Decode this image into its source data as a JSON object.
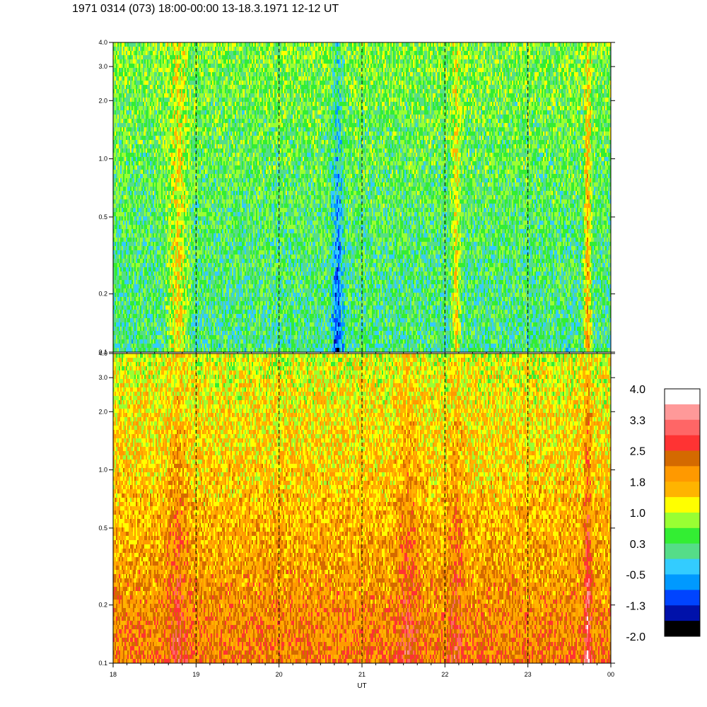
{
  "title": "1971 0314 (073) 18:00-00:00 13-18.3.1971  12-12 UT",
  "chart_data": [
    {
      "type": "heatmap",
      "panel": "upper",
      "x_range": [
        18,
        24
      ],
      "x_tick_labels": [
        "18",
        "19",
        "20",
        "21",
        "22",
        "23",
        "00"
      ],
      "y_scale": "log",
      "ylim": [
        0.1,
        4.0
      ],
      "y_tick_values": [
        0.1,
        0.2,
        0.5,
        1.0,
        2.0,
        3.0,
        4.0
      ],
      "y_tick_labels": [
        "0.1",
        "0.2",
        "0.5",
        "1.0",
        "2.0",
        "3.0",
        "4.0"
      ],
      "dominant_levels": [
        -0.5,
        0.3,
        1.0
      ],
      "features": [
        {
          "x_start": 18.6,
          "x_end": 18.95,
          "level_peak": 1.8
        },
        {
          "x_start": 20.6,
          "x_end": 20.8,
          "level_peak": -1.3
        },
        {
          "x_start": 22.05,
          "x_end": 22.2,
          "level_peak": 1.8
        },
        {
          "x_start": 23.65,
          "x_end": 23.78,
          "level_peak": 2.5
        }
      ]
    },
    {
      "type": "heatmap",
      "panel": "lower",
      "x_range": [
        18,
        24
      ],
      "x_tick_labels": [
        "18",
        "19",
        "20",
        "21",
        "22",
        "23",
        "00"
      ],
      "xlabel": "UT",
      "y_scale": "log",
      "ylim": [
        0.1,
        4.0
      ],
      "y_tick_values": [
        0.1,
        0.2,
        0.5,
        1.0,
        2.0,
        3.0,
        4.0
      ],
      "y_tick_labels": [
        "0.1",
        "0.2",
        "0.5",
        "1.0",
        "2.0",
        "3.0",
        "4.0"
      ],
      "dominant_levels": [
        1.0,
        1.8,
        2.5
      ],
      "features": [
        {
          "x_start": 18.6,
          "x_end": 18.95,
          "level_peak": 2.5
        },
        {
          "x_start": 19.6,
          "x_end": 19.9,
          "level_peak": 1.8
        },
        {
          "x_start": 21.35,
          "x_end": 21.75,
          "level_peak": 2.5
        },
        {
          "x_start": 22.0,
          "x_end": 22.25,
          "level_peak": 2.5
        },
        {
          "x_start": 23.65,
          "x_end": 23.78,
          "level_peak": 3.3
        }
      ]
    }
  ],
  "colorbar": {
    "labels": [
      "4.0",
      "3.3",
      "2.5",
      "1.8",
      "1.0",
      "0.3",
      "-0.5",
      "-1.3",
      "-2.0"
    ],
    "colors": [
      "#ffffff",
      "#ff9999",
      "#ff6666",
      "#ff3333",
      "#d46a00",
      "#ff9900",
      "#ffb400",
      "#ffff00",
      "#99ff33",
      "#33ee33",
      "#55dd88",
      "#33ccff",
      "#0099ff",
      "#0044ff",
      "#0011aa",
      "#000000"
    ]
  }
}
